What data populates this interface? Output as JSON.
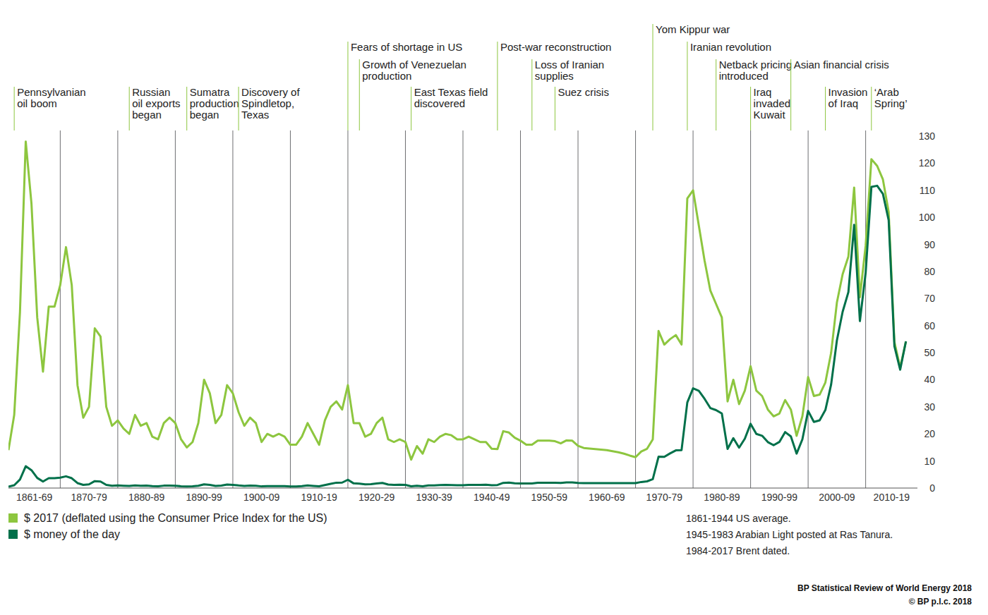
{
  "chart_data": {
    "type": "line",
    "x": [
      1861,
      1862,
      1863,
      1864,
      1865,
      1866,
      1867,
      1868,
      1869,
      1870,
      1871,
      1872,
      1873,
      1874,
      1875,
      1876,
      1877,
      1878,
      1879,
      1880,
      1881,
      1882,
      1883,
      1884,
      1885,
      1886,
      1887,
      1888,
      1889,
      1890,
      1891,
      1892,
      1893,
      1894,
      1895,
      1896,
      1897,
      1898,
      1899,
      1900,
      1901,
      1902,
      1903,
      1904,
      1905,
      1906,
      1907,
      1908,
      1909,
      1910,
      1911,
      1912,
      1913,
      1914,
      1915,
      1916,
      1917,
      1918,
      1919,
      1920,
      1921,
      1922,
      1923,
      1924,
      1925,
      1926,
      1927,
      1928,
      1929,
      1930,
      1931,
      1932,
      1933,
      1934,
      1935,
      1936,
      1937,
      1938,
      1939,
      1940,
      1941,
      1942,
      1943,
      1944,
      1945,
      1946,
      1947,
      1948,
      1949,
      1950,
      1951,
      1952,
      1953,
      1954,
      1955,
      1956,
      1957,
      1958,
      1959,
      1960,
      1961,
      1962,
      1963,
      1964,
      1965,
      1966,
      1967,
      1968,
      1969,
      1970,
      1971,
      1972,
      1973,
      1974,
      1975,
      1976,
      1977,
      1978,
      1979,
      1980,
      1981,
      1982,
      1983,
      1984,
      1985,
      1986,
      1987,
      1988,
      1989,
      1990,
      1991,
      1992,
      1993,
      1994,
      1995,
      1996,
      1997,
      1998,
      1999,
      2000,
      2001,
      2002,
      2003,
      2004,
      2005,
      2006,
      2007,
      2008,
      2009,
      2010,
      2011,
      2012,
      2013,
      2014,
      2015,
      2016,
      2017
    ],
    "series": [
      {
        "name": "$ 2017 (deflated using the Consumer Price Index for the US)",
        "color": "#8dc63f",
        "values": [
          14,
          27,
          65,
          128,
          105,
          63,
          43,
          67,
          67,
          75,
          89,
          75,
          38,
          26,
          30,
          59,
          56,
          30,
          23,
          25,
          22,
          20,
          27,
          23,
          24,
          19,
          18,
          24,
          26,
          24,
          18,
          15,
          17,
          24,
          40,
          35,
          24,
          27,
          38,
          35,
          28,
          23,
          26,
          24,
          17,
          20,
          19,
          20,
          19,
          16,
          16,
          19,
          24,
          20,
          16,
          25,
          30,
          32,
          29,
          38,
          24,
          24,
          19,
          20,
          24,
          26,
          18,
          17,
          18,
          17,
          10.5,
          15.5,
          12.7,
          18,
          17,
          19,
          20,
          19.5,
          18,
          18,
          19,
          18,
          17,
          17,
          14.5,
          14.4,
          21,
          20.5,
          18.6,
          17.5,
          16,
          16,
          17.5,
          17.5,
          17.5,
          17.3,
          16.5,
          17.6,
          17.5,
          15.6,
          14.8,
          14.6,
          14.4,
          14.2,
          14,
          13.6,
          13.2,
          12.7,
          12,
          11.4,
          13.5,
          14.5,
          18,
          58,
          53,
          55,
          56.5,
          53,
          107,
          110,
          97,
          84,
          73,
          68,
          63,
          32,
          40,
          31,
          36,
          45,
          36,
          34,
          29,
          26.5,
          27.5,
          32.5,
          29,
          19.3,
          26.5,
          41,
          34,
          34.5,
          39,
          50,
          68.5,
          79,
          85.5,
          111,
          70.5,
          89.5,
          121.5,
          119,
          114,
          102,
          54,
          44.5,
          54.2
        ]
      },
      {
        "name": "$ money of the day",
        "color": "#00704a",
        "values": [
          0.49,
          1.05,
          3.15,
          8.06,
          6.59,
          3.74,
          2.41,
          3.63,
          3.64,
          3.86,
          4.34,
          3.64,
          1.83,
          1.17,
          1.35,
          2.56,
          2.42,
          1.19,
          0.86,
          0.95,
          0.86,
          0.78,
          1,
          0.84,
          0.88,
          0.71,
          0.67,
          0.88,
          0.94,
          0.87,
          0.67,
          0.56,
          0.64,
          0.84,
          1.36,
          1.18,
          0.79,
          0.91,
          1.29,
          1.19,
          0.96,
          0.8,
          0.94,
          0.86,
          0.62,
          0.73,
          0.72,
          0.72,
          0.7,
          0.61,
          0.61,
          0.74,
          0.95,
          0.81,
          0.64,
          1.1,
          1.56,
          1.98,
          2.01,
          3.07,
          1.73,
          1.61,
          1.34,
          1.43,
          1.68,
          1.88,
          1.3,
          1.17,
          1.27,
          1.19,
          0.65,
          0.87,
          0.67,
          1,
          0.97,
          1.09,
          1.18,
          1.13,
          1.02,
          1.02,
          1.14,
          1.19,
          1.2,
          1.21,
          1.05,
          1.12,
          1.9,
          1.99,
          1.78,
          1.71,
          1.71,
          1.71,
          1.93,
          1.93,
          1.93,
          1.93,
          1.9,
          2.08,
          2.08,
          1.9,
          1.8,
          1.8,
          1.8,
          1.8,
          1.8,
          1.8,
          1.8,
          1.8,
          1.8,
          1.8,
          2.24,
          2.48,
          3.29,
          11.58,
          11.53,
          12.8,
          13.92,
          14.02,
          31.61,
          36.83,
          35.93,
          32.97,
          29.55,
          28.78,
          27.56,
          14.43,
          18.44,
          14.92,
          18.23,
          23.73,
          20,
          19.32,
          16.97,
          15.82,
          17.02,
          20.67,
          19.09,
          12.72,
          17.97,
          28.5,
          24.44,
          25.02,
          28.83,
          38.27,
          54.52,
          65.14,
          72.39,
          97.26,
          61.67,
          79.5,
          111.26,
          111.67,
          108.66,
          98.95,
          52.39,
          43.73,
          54.19
        ]
      }
    ],
    "xlim": [
      1861,
      2019
    ],
    "xticks": [
      {
        "value": 1861,
        "label": "1861-69"
      },
      {
        "value": 1870,
        "label": "1870-79"
      },
      {
        "value": 1880,
        "label": "1880-89"
      },
      {
        "value": 1890,
        "label": "1890-99"
      },
      {
        "value": 1900,
        "label": "1900-09"
      },
      {
        "value": 1910,
        "label": "1910-19"
      },
      {
        "value": 1920,
        "label": "1920-29"
      },
      {
        "value": 1930,
        "label": "1930-39"
      },
      {
        "value": 1940,
        "label": "1940-49"
      },
      {
        "value": 1950,
        "label": "1950-59"
      },
      {
        "value": 1960,
        "label": "1960-69"
      },
      {
        "value": 1970,
        "label": "1970-79"
      },
      {
        "value": 1980,
        "label": "1980-89"
      },
      {
        "value": 1990,
        "label": "1990-99"
      },
      {
        "value": 2000,
        "label": "2000-09"
      },
      {
        "value": 2010,
        "label": "2010-19"
      }
    ],
    "ylim": [
      0,
      130
    ],
    "yticks": [
      0,
      10,
      20,
      30,
      40,
      50,
      60,
      70,
      80,
      90,
      100,
      110,
      120,
      130
    ],
    "grid": true,
    "legend": "bottom left",
    "annotations": [
      {
        "x": 1862,
        "label": "Pennsylvanian\noil boom"
      },
      {
        "x": 1882,
        "label": "Russian\noil exports\nbegan"
      },
      {
        "x": 1892,
        "label": "Sumatra\nproduction\nbegan"
      },
      {
        "x": 1901,
        "label": "Discovery of\nSpindletop,\nTexas"
      },
      {
        "x": 1920,
        "label": "Fears of shortage in US"
      },
      {
        "x": 1922,
        "label": "Growth of Venezuelan\nproduction"
      },
      {
        "x": 1931,
        "label": "East Texas field\ndiscovered"
      },
      {
        "x": 1946,
        "label": "Post-war reconstruction"
      },
      {
        "x": 1952,
        "label": "Loss of Iranian\nsupplies"
      },
      {
        "x": 1956,
        "label": "Suez crisis"
      },
      {
        "x": 1973,
        "label": "Yom Kippur war"
      },
      {
        "x": 1979,
        "label": "Iranian revolution"
      },
      {
        "x": 1984,
        "label": "Netback pricing\nintroduced"
      },
      {
        "x": 1990,
        "label": "Iraq\ninvaded\nKuwait"
      },
      {
        "x": 1997,
        "label": "Asian financial crisis"
      },
      {
        "x": 2003,
        "label": "Invasion\nof Iraq"
      },
      {
        "x": 2011,
        "label": "‘Arab\nSpring’"
      }
    ],
    "notes": [
      "1861-1944 US average.",
      "1945-1983 Arabian Light posted at Ras Tanura.",
      "1984-2017 Brent dated."
    ],
    "source": [
      "BP Statistical Review of World Energy 2018",
      "© BP p.l.c. 2018"
    ]
  }
}
